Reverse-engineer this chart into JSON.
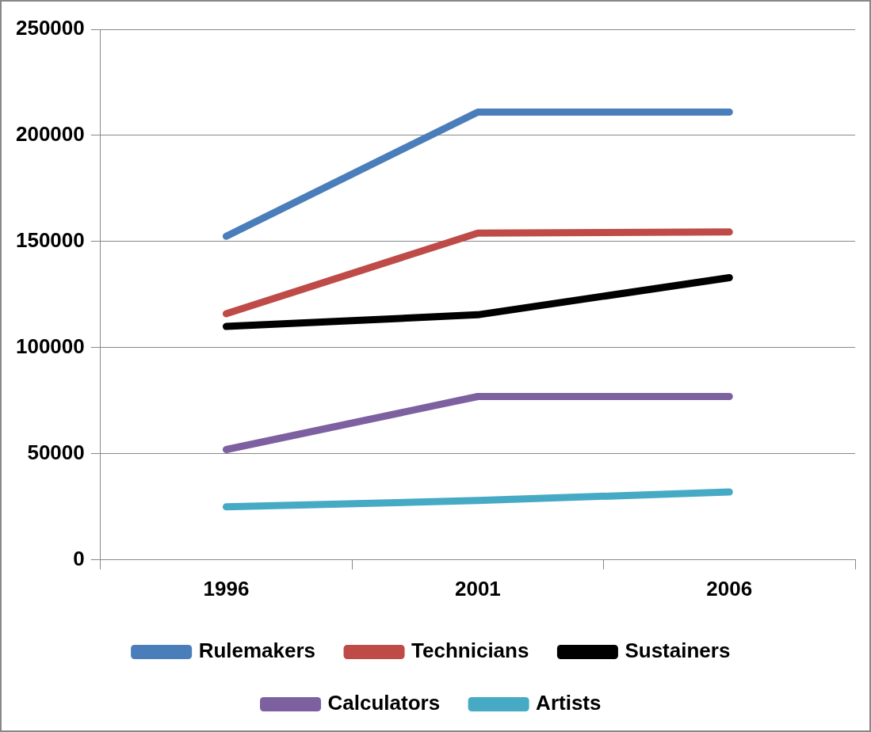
{
  "chart_data": {
    "type": "line",
    "categories": [
      "1996",
      "2001",
      "2006"
    ],
    "series": [
      {
        "name": "Rulemakers",
        "color": "#4a7ebb",
        "values": [
          152500,
          211000,
          211000
        ]
      },
      {
        "name": "Technicians",
        "color": "#be4b48",
        "values": [
          116000,
          154000,
          154500
        ]
      },
      {
        "name": "Sustainers",
        "color": "#000000",
        "values": [
          110000,
          115500,
          133000
        ]
      },
      {
        "name": "Calculators",
        "color": "#7d60a0",
        "values": [
          52000,
          77000,
          77000
        ]
      },
      {
        "name": "Artists",
        "color": "#46aac5",
        "values": [
          25000,
          28000,
          32000
        ]
      }
    ],
    "ylim": [
      0,
      250000
    ],
    "yticks": [
      0,
      50000,
      100000,
      150000,
      200000,
      250000
    ],
    "grid": "y",
    "legend": "bottom",
    "marker": "none",
    "line_style": "solid"
  }
}
